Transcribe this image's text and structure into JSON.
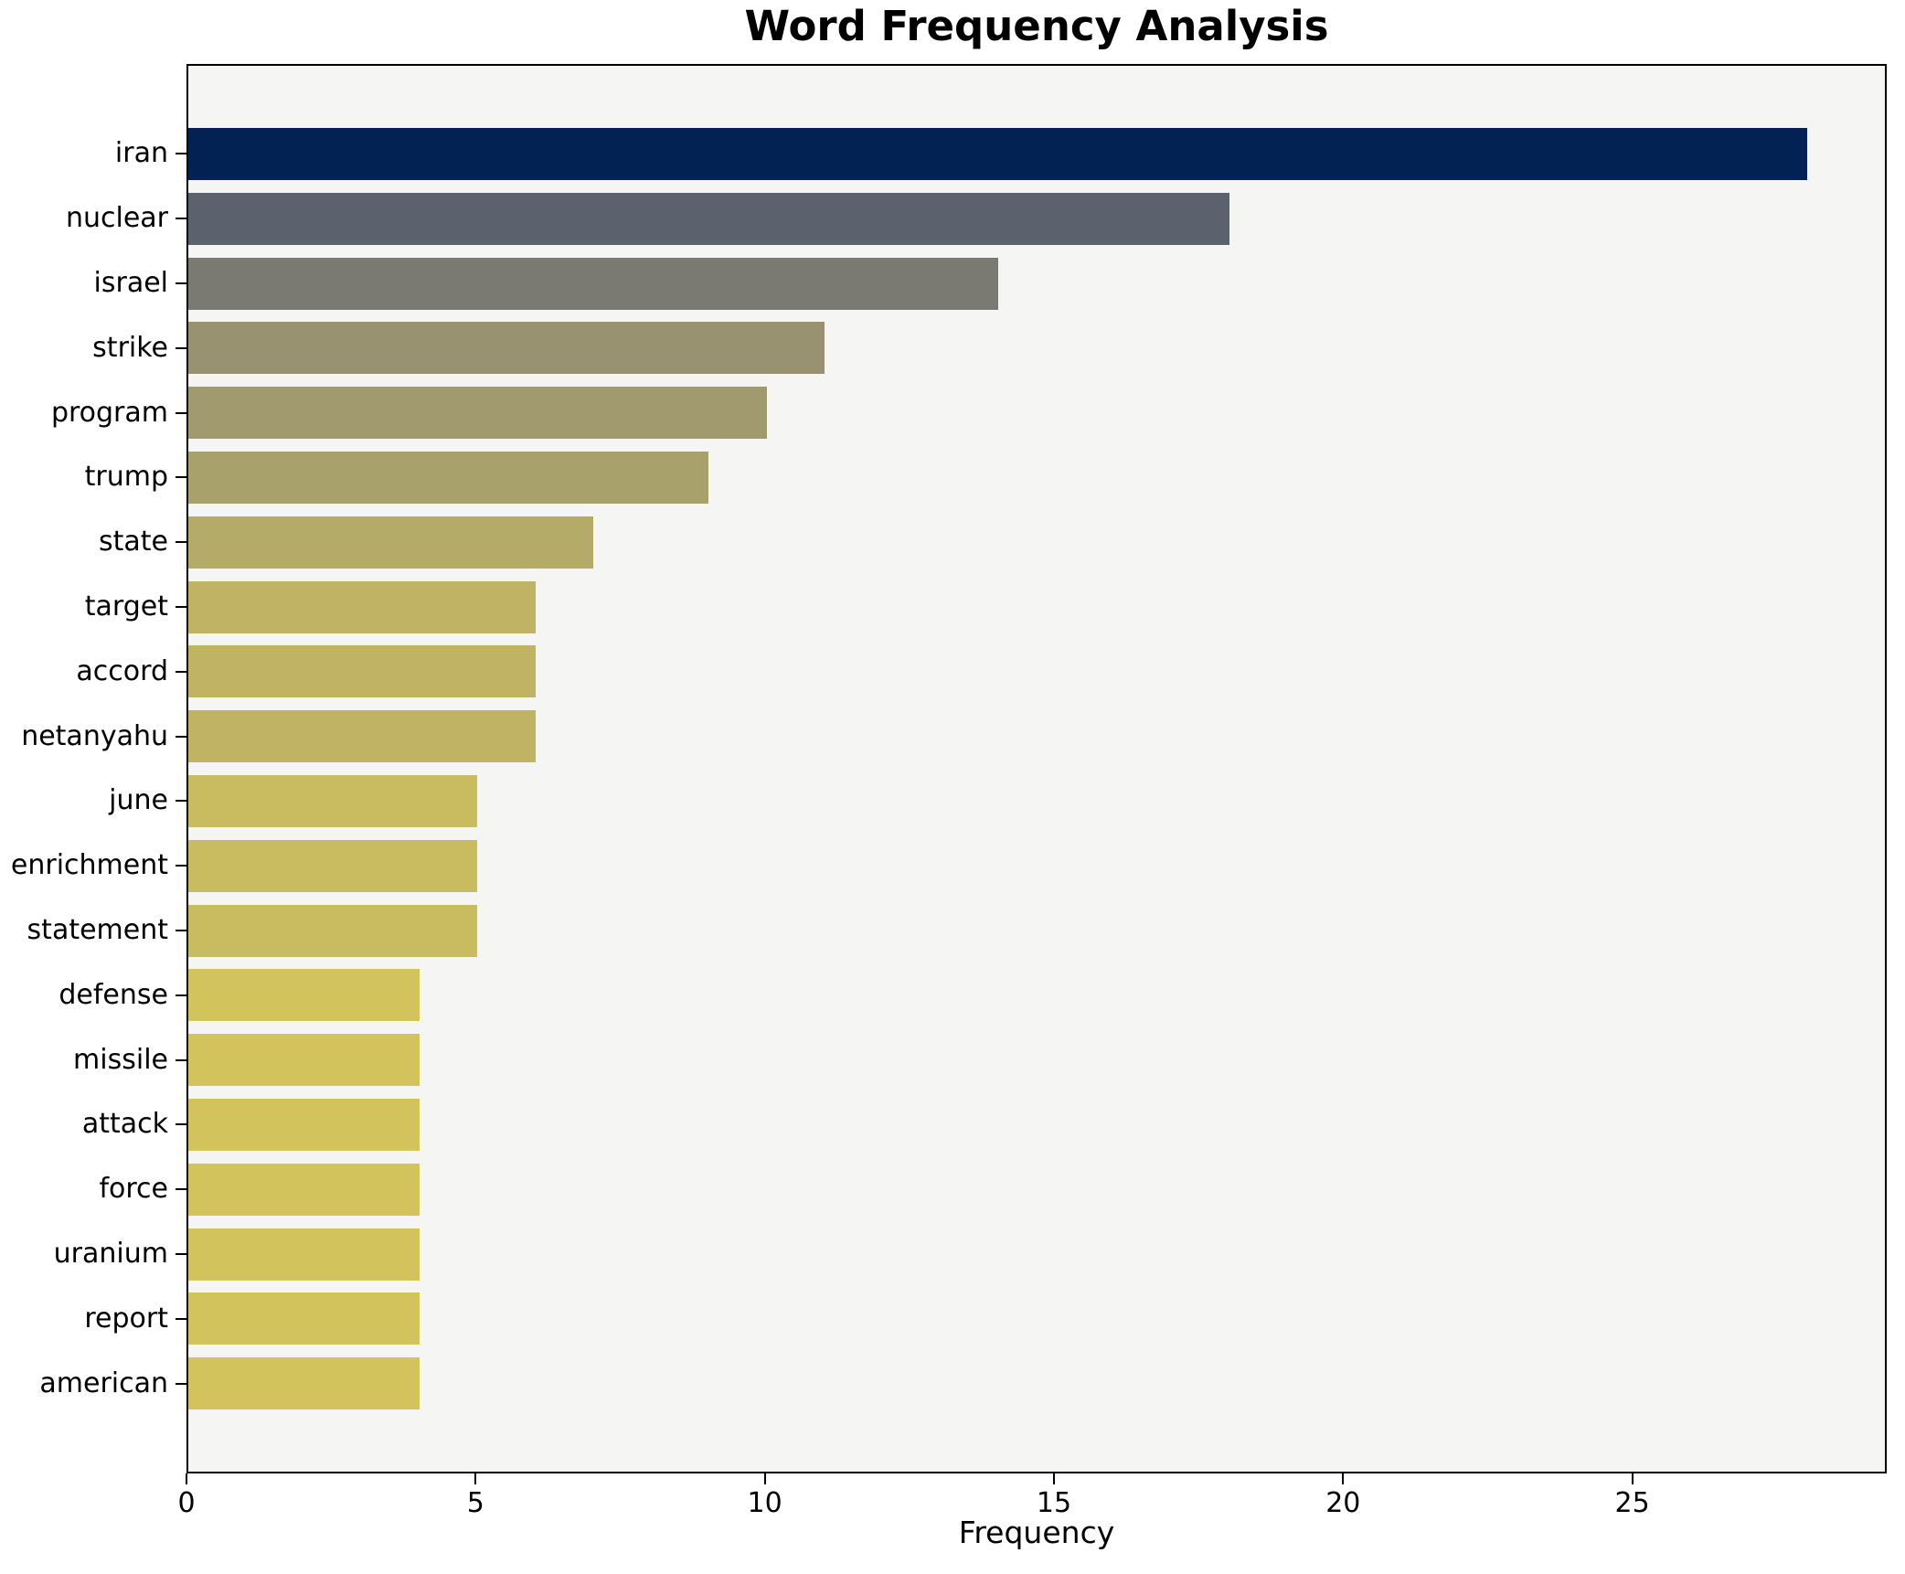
{
  "chart_data": {
    "type": "bar",
    "orientation": "horizontal",
    "title": "Word Frequency Analysis",
    "xlabel": "Frequency",
    "ylabel": "",
    "categories": [
      "iran",
      "nuclear",
      "israel",
      "strike",
      "program",
      "trump",
      "state",
      "target",
      "accord",
      "netanyahu",
      "june",
      "enrichment",
      "statement",
      "defense",
      "missile",
      "attack",
      "force",
      "uranium",
      "report",
      "american"
    ],
    "values": [
      28,
      18,
      14,
      11,
      10,
      9,
      7,
      6,
      6,
      6,
      5,
      5,
      5,
      4,
      4,
      4,
      4,
      4,
      4,
      4
    ],
    "bar_colors": [
      "#022254",
      "#5c616e",
      "#7b7a72",
      "#989270",
      "#a19a6e",
      "#a9a16b",
      "#b4ab68",
      "#c0b464",
      "#c0b464",
      "#c0b464",
      "#c9bc60",
      "#c9bc60",
      "#c9bc60",
      "#d3c35c",
      "#d3c35c",
      "#d3c35c",
      "#d3c35c",
      "#d3c35c",
      "#d3c35c",
      "#d3c35c"
    ],
    "xlim": [
      0,
      29.4
    ],
    "xticks": [
      0,
      5,
      10,
      15,
      20,
      25
    ],
    "grid": false,
    "legend_position": "none",
    "colormap": "cividis",
    "plot_background": "#f5f5f4",
    "figure_background": "#ffffff",
    "spine_color": "#000000",
    "bar_height_fraction": 0.8
  }
}
